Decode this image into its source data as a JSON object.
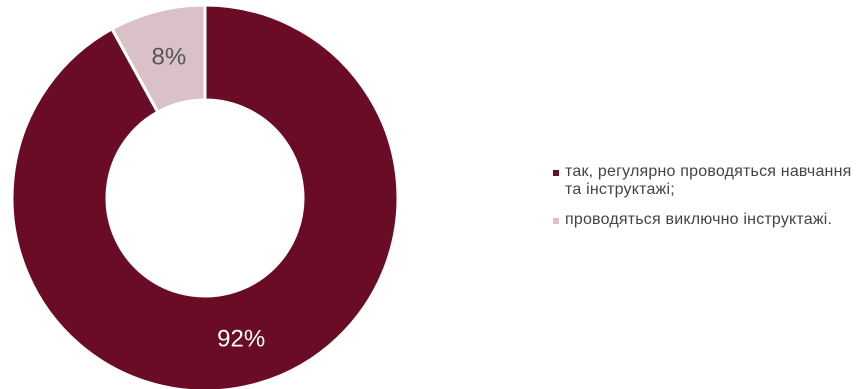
{
  "chart_data": {
    "type": "pie",
    "variant": "donut",
    "categories": [
      "так, регулярно проводяться навчання та інструктажі;",
      "проводяться виключно інструктажі."
    ],
    "values": [
      92,
      8
    ],
    "value_labels": [
      "92%",
      "8%"
    ],
    "colors": [
      "#6b0c26",
      "#d9c1c7"
    ],
    "label_colors": [
      "#ffffff",
      "#555555"
    ],
    "title": "",
    "legend_position": "right"
  }
}
